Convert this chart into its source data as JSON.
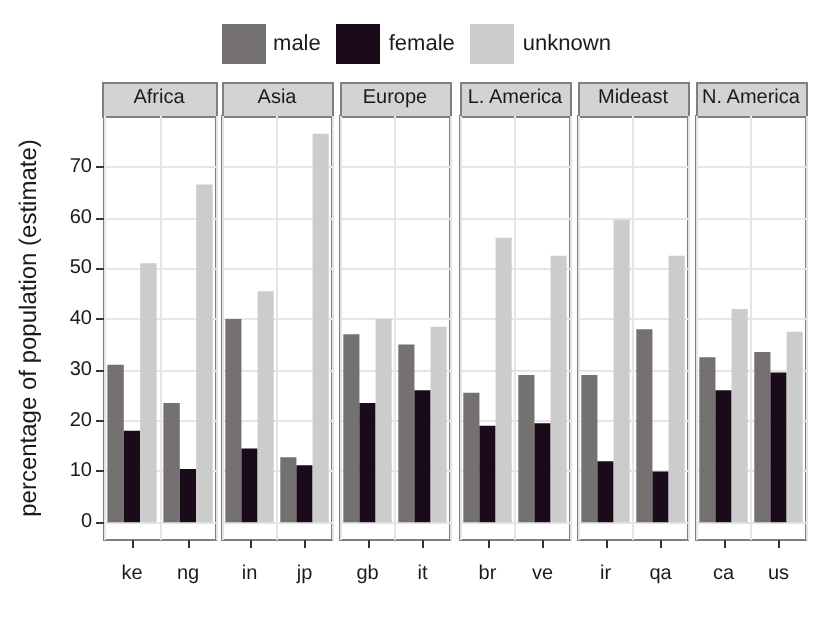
{
  "chart_data": [
    {
      "type": "bar",
      "title": "Africa",
      "ylabel": "percentage of population (estimate)",
      "categories": [
        "ke",
        "ng"
      ],
      "legend": "top",
      "grid": true,
      "ylim": [
        -3.5,
        80
      ],
      "yticks": [
        0,
        10,
        20,
        30,
        40,
        50,
        60,
        70
      ],
      "series": [
        {
          "name": "male",
          "color": "#767171",
          "values": [
            31,
            23.5
          ]
        },
        {
          "name": "female",
          "color": "#1a0a1a",
          "values": [
            18,
            10.5
          ]
        },
        {
          "name": "unknown",
          "color": "#cccccc",
          "values": [
            51,
            66.5
          ]
        }
      ]
    },
    {
      "type": "bar",
      "title": "Asia",
      "categories": [
        "in",
        "jp"
      ],
      "grid": true,
      "tick_labels": "x",
      "ylim": [
        -3.5,
        80
      ],
      "yticks": [
        0,
        10,
        20,
        30,
        40,
        50,
        60,
        70
      ],
      "series": [
        {
          "color": "#767171",
          "values": [
            40,
            12.8
          ]
        },
        {
          "color": "#1a0a1a",
          "values": [
            14.5,
            11.2
          ]
        },
        {
          "color": "#cccccc",
          "values": [
            45.5,
            76.5
          ]
        }
      ]
    },
    {
      "type": "bar",
      "title": "Europe",
      "categories": [
        "gb",
        "it"
      ],
      "grid": true,
      "tick_labels": "x",
      "ylim": [
        -3.5,
        80
      ],
      "yticks": [
        0,
        10,
        20,
        30,
        40,
        50,
        60,
        70
      ],
      "series": [
        {
          "color": "#767171",
          "values": [
            37,
            35
          ]
        },
        {
          "color": "#1a0a1a",
          "values": [
            23.5,
            26
          ]
        },
        {
          "color": "#cccccc",
          "values": [
            40,
            38.5
          ]
        }
      ]
    },
    {
      "type": "bar",
      "title": "L. America",
      "categories": [
        "br",
        "ve"
      ],
      "grid": true,
      "tick_labels": "x",
      "ylim": [
        -3.5,
        80
      ],
      "yticks": [
        0,
        10,
        20,
        30,
        40,
        50,
        60,
        70
      ],
      "series": [
        {
          "color": "#767171",
          "values": [
            25.5,
            29
          ]
        },
        {
          "color": "#1a0a1a",
          "values": [
            19,
            19.5
          ]
        },
        {
          "color": "#cccccc",
          "values": [
            56,
            52.5
          ]
        }
      ]
    },
    {
      "type": "bar",
      "title": "Mideast",
      "categories": [
        "ir",
        "qa"
      ],
      "grid": true,
      "tick_labels": "x",
      "ylim": [
        -3.5,
        80
      ],
      "yticks": [
        0,
        10,
        20,
        30,
        40,
        50,
        60,
        70
      ],
      "series": [
        {
          "color": "#767171",
          "values": [
            29,
            38
          ]
        },
        {
          "color": "#1a0a1a",
          "values": [
            12,
            10
          ]
        },
        {
          "color": "#cccccc",
          "values": [
            59.5,
            52.5
          ]
        }
      ]
    },
    {
      "type": "bar",
      "title": "N. America",
      "categories": [
        "ca",
        "us"
      ],
      "grid": true,
      "tick_labels": "x",
      "ylim": [
        -3.5,
        80
      ],
      "yticks": [
        0,
        10,
        20,
        30,
        40,
        50,
        60,
        70
      ],
      "series": [
        {
          "color": "#767171",
          "values": [
            32.5,
            33.5
          ]
        },
        {
          "color": "#1a0a1a",
          "values": [
            26,
            29.5
          ]
        },
        {
          "color": "#cccccc",
          "values": [
            42,
            37.5
          ]
        }
      ]
    }
  ]
}
